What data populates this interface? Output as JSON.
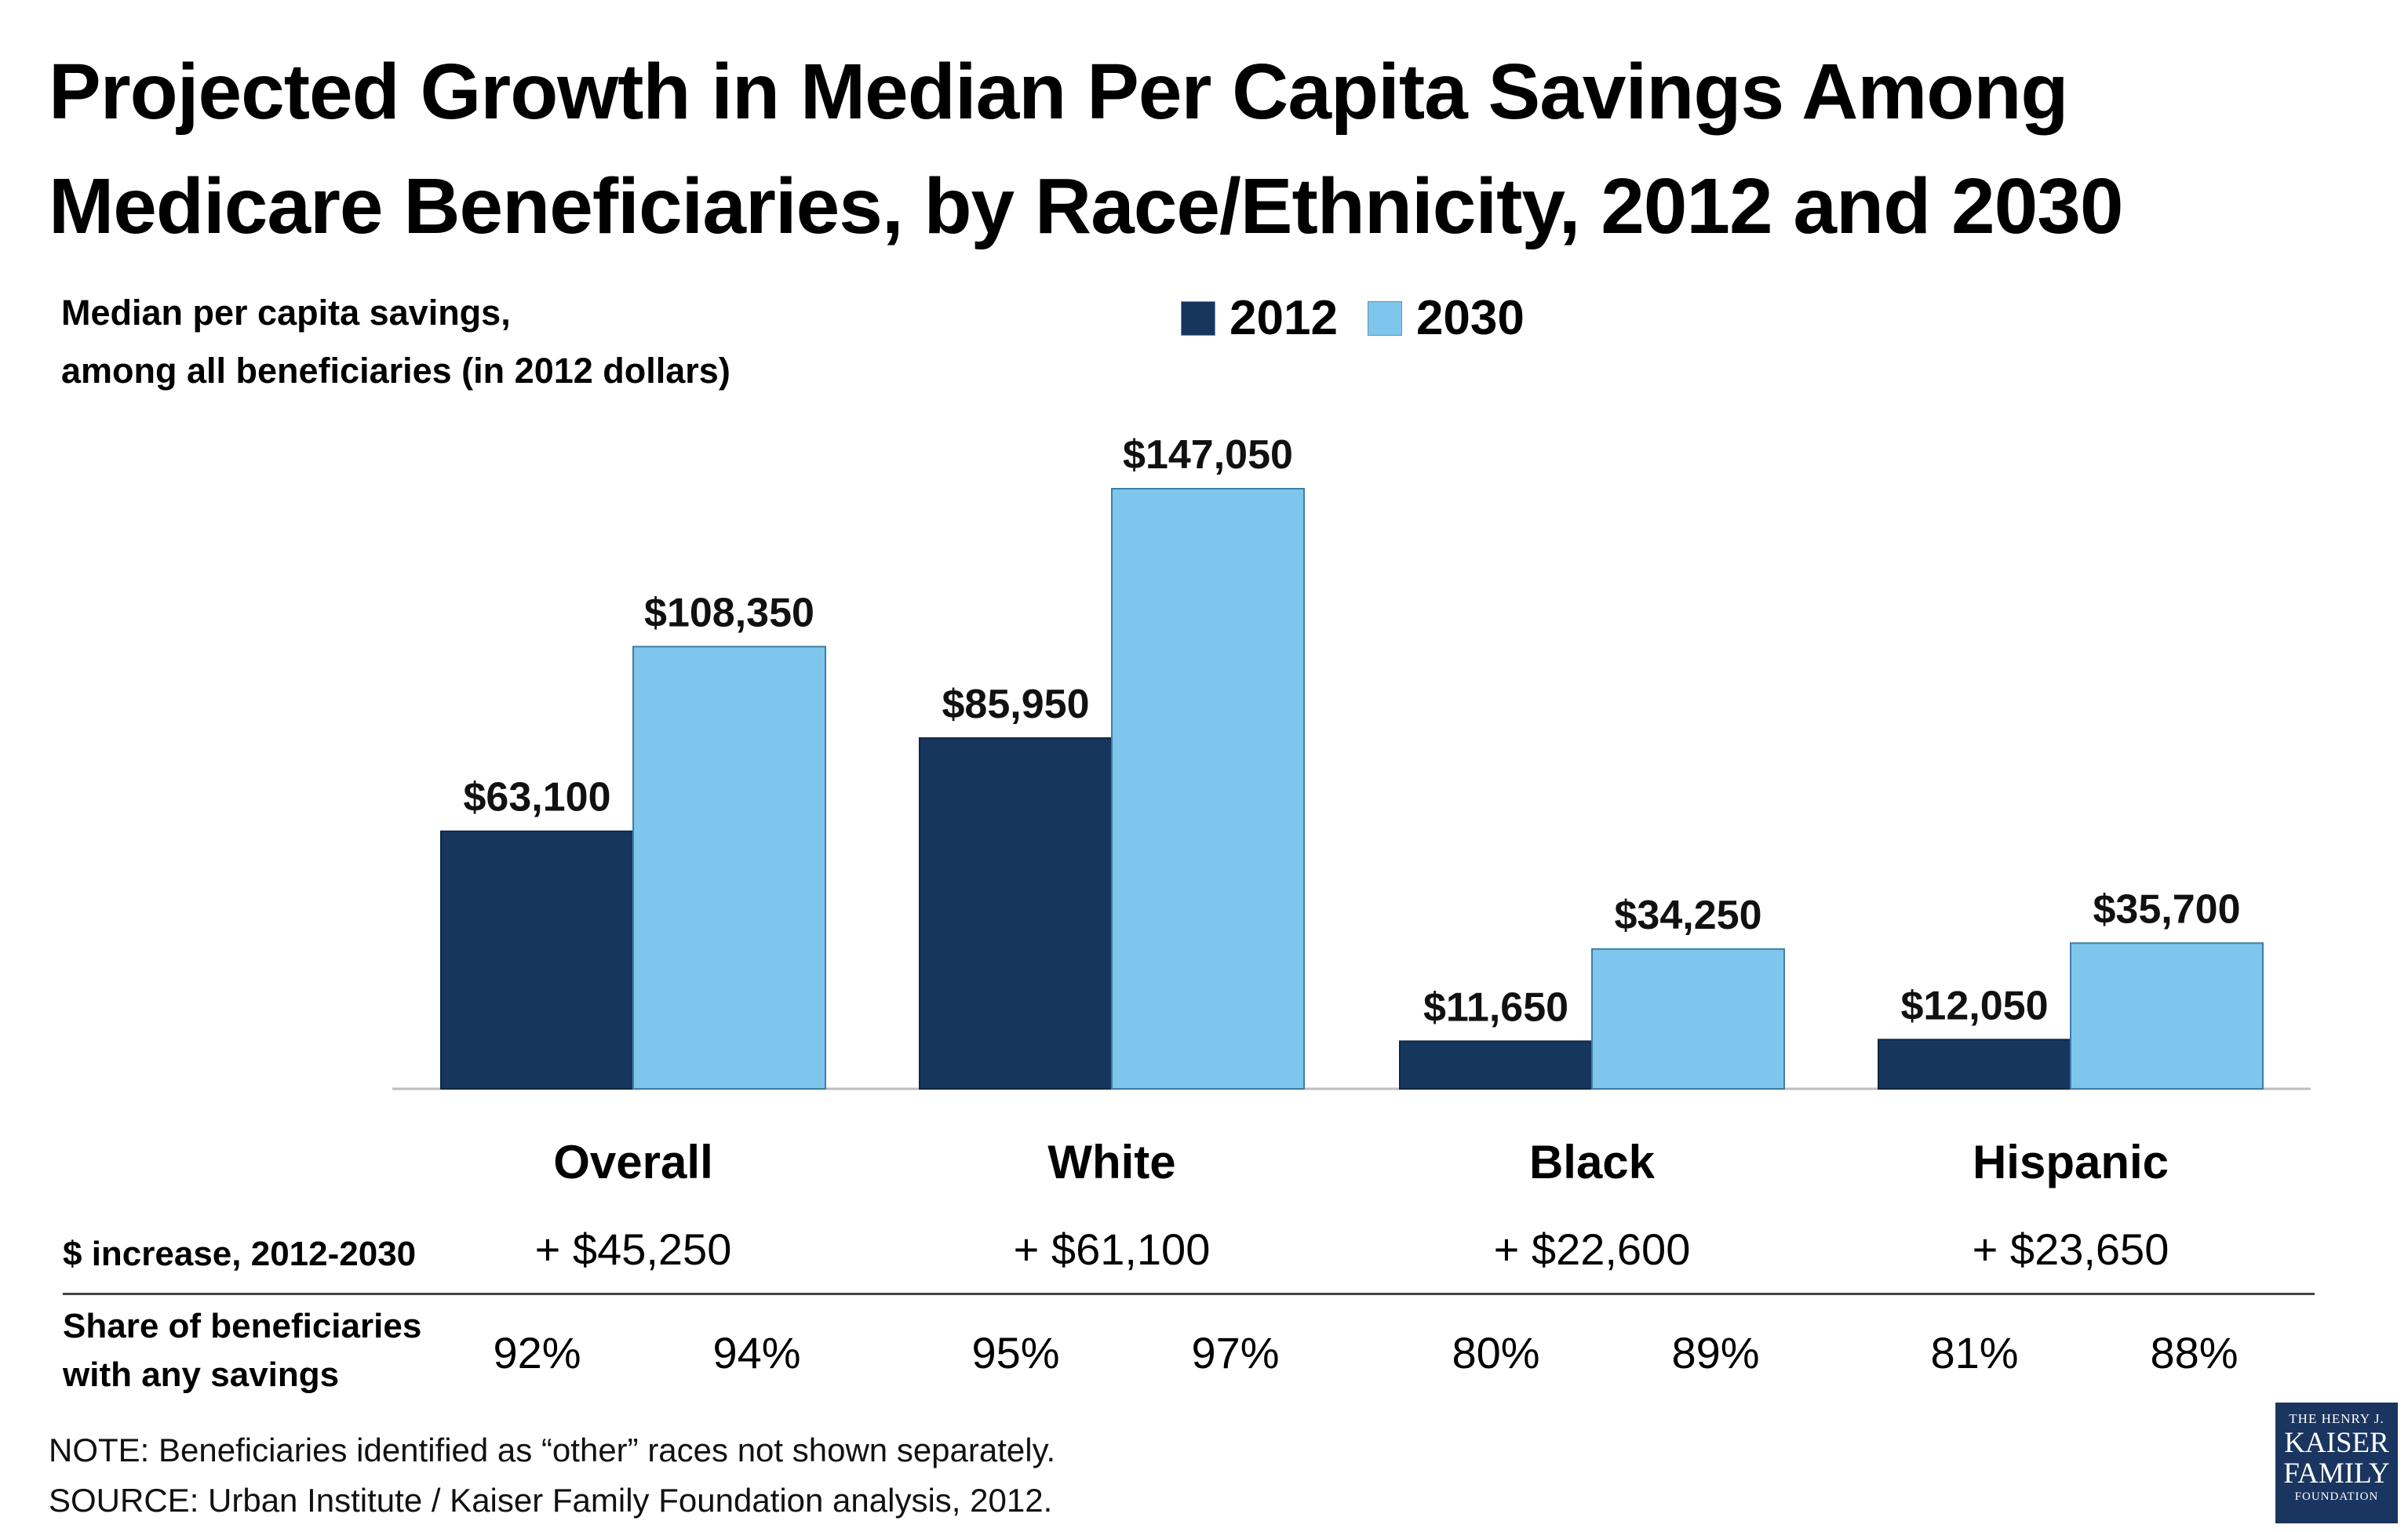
{
  "title": "Projected Growth in Median Per Capita Savings Among Medicare Beneficiaries, by Race/Ethnicity, 2012 and 2030",
  "y_axis_label": [
    "Median per capita savings,",
    "among all beneficiaries (in 2012 dollars)"
  ],
  "colors": {
    "series_2012": "#17365d",
    "series_2030": "#7fc6ec"
  },
  "chart_data": {
    "type": "bar",
    "title": "Projected Growth in Median Per Capita Savings Among Medicare Beneficiaries, by Race/Ethnicity, 2012 and 2030",
    "ylabel": "Median per capita savings, among all beneficiaries (in 2012 dollars)",
    "categories": [
      "Overall",
      "White",
      "Black",
      "Hispanic"
    ],
    "series": [
      {
        "name": "2012",
        "values": [
          63100,
          85950,
          11650,
          12050
        ],
        "labels": [
          "$63,100",
          "$85,950",
          "$11,650",
          "$12,050"
        ]
      },
      {
        "name": "2030",
        "values": [
          108350,
          147050,
          34250,
          35700
        ],
        "labels": [
          "$108,350",
          "$147,050",
          "$34,250",
          "$35,700"
        ]
      }
    ],
    "ylim": [
      0,
      160000
    ],
    "grid": false,
    "legend_position": "top-center"
  },
  "table": {
    "increase_label": "$ increase, 2012-2030",
    "increase_values": [
      "+ $45,250",
      "+ $61,100",
      "+ $22,600",
      "+ $23,650"
    ],
    "share_label": [
      "Share of beneficiaries",
      "with any savings"
    ],
    "share_values": [
      [
        "92%",
        "94%"
      ],
      [
        "95%",
        "97%"
      ],
      [
        "80%",
        "89%"
      ],
      [
        "81%",
        "88%"
      ]
    ]
  },
  "note": "NOTE: Beneficiaries identified as “other” races not shown separately.",
  "source": "SOURCE: Urban Institute / Kaiser Family Foundation analysis, 2012.",
  "logo": {
    "line1": "THE HENRY J.",
    "line2": "KAISER",
    "line3": "FAMILY",
    "line4": "FOUNDATION"
  }
}
